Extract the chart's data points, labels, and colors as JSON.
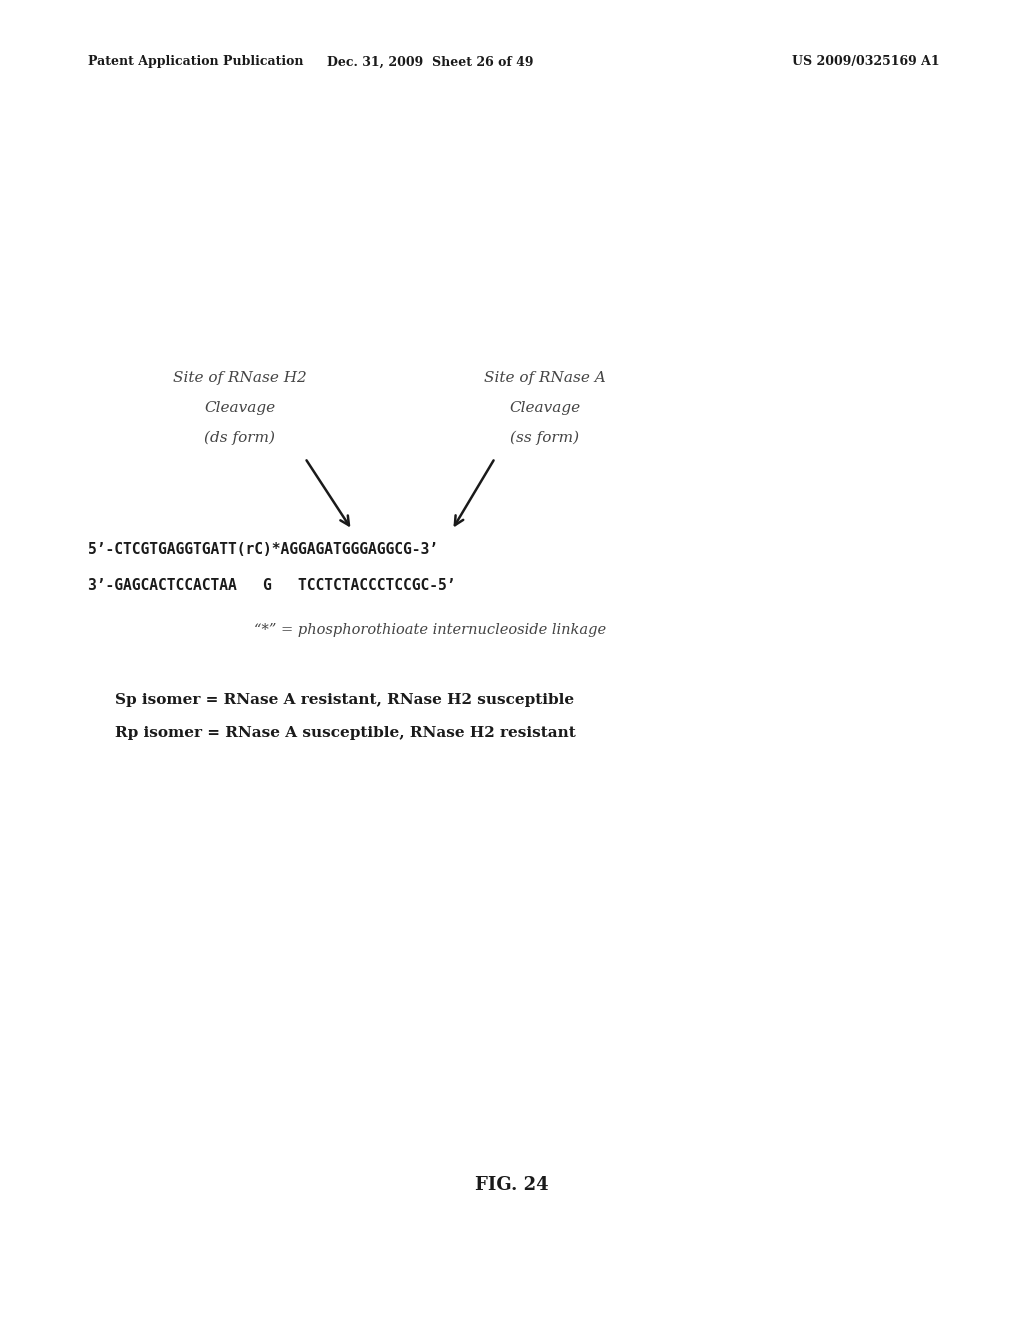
{
  "background_color": "#ffffff",
  "header_left": "Patent Application Publication",
  "header_center": "Dec. 31, 2009  Sheet 26 of 49",
  "header_right": "US 2009/0325169 A1",
  "label1_line1": "Site of RNase H2",
  "label1_line2": "Cleavage",
  "label1_line3": "(ds form)",
  "label2_line1": "Site of RNase A",
  "label2_line2": "Cleavage",
  "label2_line3": "(ss form)",
  "seq_top": "5’-CTCGTGAGGTGATT(rC)*AGGAGATGGGAGGCG-3’",
  "seq_bot": "3’-GAGCACTCCACTAA   G   TCCTCTACCCTCCGC-5’",
  "legend": "“*” = phosphorothioate internucleoside linkage",
  "note1": "Sp isomer = RNase A resistant, RNase H2 susceptible",
  "note2": "Rp isomer = RNase A susceptible, RNase H2 resistant",
  "fig_label": "FIG. 24",
  "text_color_dark": "#1a1a1a",
  "text_color_mid": "#444444",
  "header_fontsize": 9,
  "label_fontsize": 11,
  "seq_fontsize": 10.5,
  "legend_fontsize": 10.5,
  "note_fontsize": 11,
  "fig_fontsize": 13
}
